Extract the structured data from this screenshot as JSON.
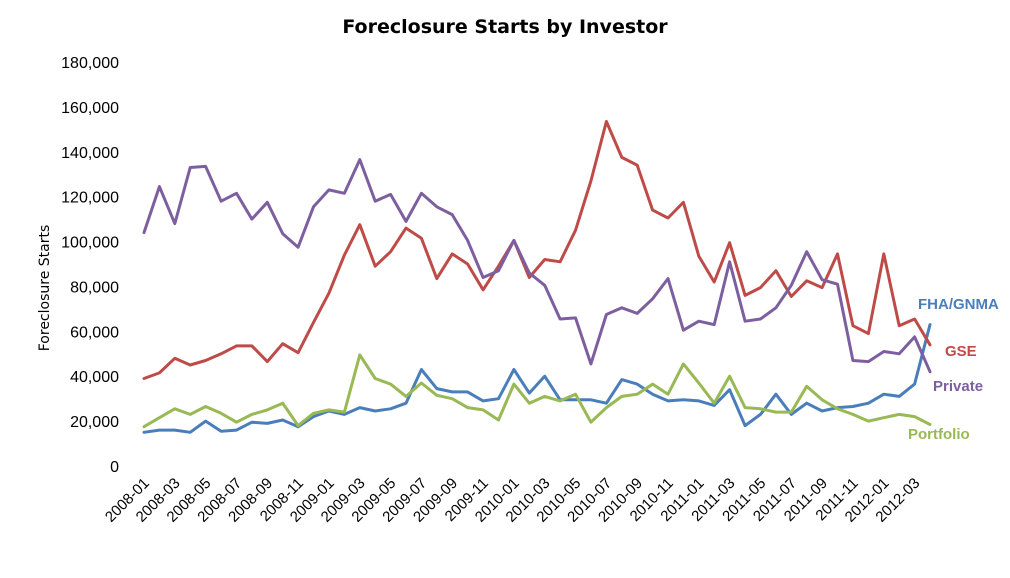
{
  "chart_data": {
    "type": "line",
    "title": "Foreclosure Starts by Investor",
    "ylabel": "Foreclosure Starts",
    "xlabel": "",
    "ylim": [
      0,
      180000
    ],
    "yticks": [
      0,
      20000,
      40000,
      60000,
      80000,
      100000,
      120000,
      140000,
      160000,
      180000
    ],
    "ytick_labels": [
      "0",
      "20,000",
      "40,000",
      "60,000",
      "80,000",
      "100,000",
      "120,000",
      "140,000",
      "160,000",
      "180,000"
    ],
    "grid": false,
    "legend": "inline labels at right end of series",
    "x": [
      "2008-01",
      "2008-02",
      "2008-03",
      "2008-04",
      "2008-05",
      "2008-06",
      "2008-07",
      "2008-08",
      "2008-09",
      "2008-10",
      "2008-11",
      "2008-12",
      "2009-01",
      "2009-02",
      "2009-03",
      "2009-04",
      "2009-05",
      "2009-06",
      "2009-07",
      "2009-08",
      "2009-09",
      "2009-10",
      "2009-11",
      "2009-12",
      "2010-01",
      "2010-02",
      "2010-03",
      "2010-04",
      "2010-05",
      "2010-06",
      "2010-07",
      "2010-08",
      "2010-09",
      "2010-10",
      "2010-11",
      "2010-12",
      "2011-01",
      "2011-02",
      "2011-03",
      "2011-04",
      "2011-05",
      "2011-06",
      "2011-07",
      "2011-08",
      "2011-09",
      "2011-10",
      "2011-11",
      "2011-12",
      "2012-01",
      "2012-02",
      "2012-03",
      "2012-04"
    ],
    "x_tick_labels": [
      "2008-01",
      "2008-03",
      "2008-05",
      "2008-07",
      "2008-09",
      "2008-11",
      "2009-01",
      "2009-03",
      "2009-05",
      "2009-07",
      "2009-09",
      "2009-11",
      "2010-01",
      "2010-03",
      "2010-05",
      "2010-07",
      "2010-09",
      "2010-11",
      "2011-01",
      "2011-03",
      "2011-05",
      "2011-07",
      "2011-09",
      "2011-11",
      "2012-01",
      "2012-03"
    ],
    "series": [
      {
        "name": "FHA/GNMA",
        "color": "#4a7ebb",
        "values": [
          15000,
          16000,
          16000,
          15000,
          20000,
          15500,
          16000,
          19500,
          19000,
          20500,
          17500,
          22000,
          24500,
          23000,
          26000,
          24500,
          25500,
          28000,
          43000,
          34500,
          33000,
          33000,
          29000,
          30000,
          43000,
          32500,
          40000,
          29500,
          29500,
          29500,
          28000,
          38500,
          36500,
          32000,
          29000,
          29500,
          29000,
          27000,
          34000,
          18000,
          23000,
          32000,
          23000,
          28000,
          24500,
          26000,
          26500,
          28000,
          32000,
          31000,
          36500,
          63000
        ]
      },
      {
        "name": "GSE",
        "color": "#be4b48",
        "values": [
          39000,
          41500,
          48000,
          45000,
          47000,
          50000,
          53500,
          53500,
          46500,
          54500,
          50500,
          64000,
          77000,
          94000,
          107500,
          89000,
          95500,
          106000,
          101500,
          83500,
          94500,
          90000,
          78500,
          89000,
          100500,
          84000,
          92000,
          91000,
          105000,
          127000,
          153500,
          137500,
          134000,
          114000,
          110500,
          117500,
          93500,
          82000,
          99500,
          76000,
          79500,
          87000,
          75500,
          82500,
          79500,
          94500,
          62500,
          59000,
          94500,
          62500,
          65500,
          54000
        ]
      },
      {
        "name": "Private",
        "color": "#7d5fa0",
        "values": [
          104000,
          124500,
          108000,
          133000,
          133500,
          118000,
          121500,
          110000,
          117500,
          103500,
          97500,
          115500,
          123000,
          121500,
          136500,
          118000,
          121000,
          109000,
          121500,
          115500,
          112000,
          100500,
          84000,
          87000,
          100500,
          86000,
          80500,
          65500,
          66000,
          45500,
          67500,
          70500,
          68000,
          74500,
          83500,
          60500,
          64500,
          63000,
          91000,
          64500,
          65500,
          70500,
          80500,
          95500,
          83000,
          81000,
          47000,
          46500,
          51000,
          50000,
          57500,
          42000
        ]
      },
      {
        "name": "Portfolio",
        "color": "#98b954",
        "values": [
          17500,
          21500,
          25500,
          23000,
          26500,
          23500,
          19500,
          23000,
          25000,
          28000,
          18000,
          23500,
          25000,
          24000,
          49500,
          39000,
          36500,
          31000,
          37000,
          31500,
          30000,
          26000,
          25000,
          20500,
          36500,
          28000,
          31000,
          29000,
          32000,
          19500,
          26000,
          31000,
          32000,
          36500,
          32000,
          45500,
          37000,
          28000,
          40000,
          26000,
          25500,
          24000,
          24000,
          35500,
          29500,
          25500,
          23000,
          20000,
          21500,
          23000,
          22000,
          18500
        ]
      }
    ],
    "series_label_positions": "right of last point"
  }
}
